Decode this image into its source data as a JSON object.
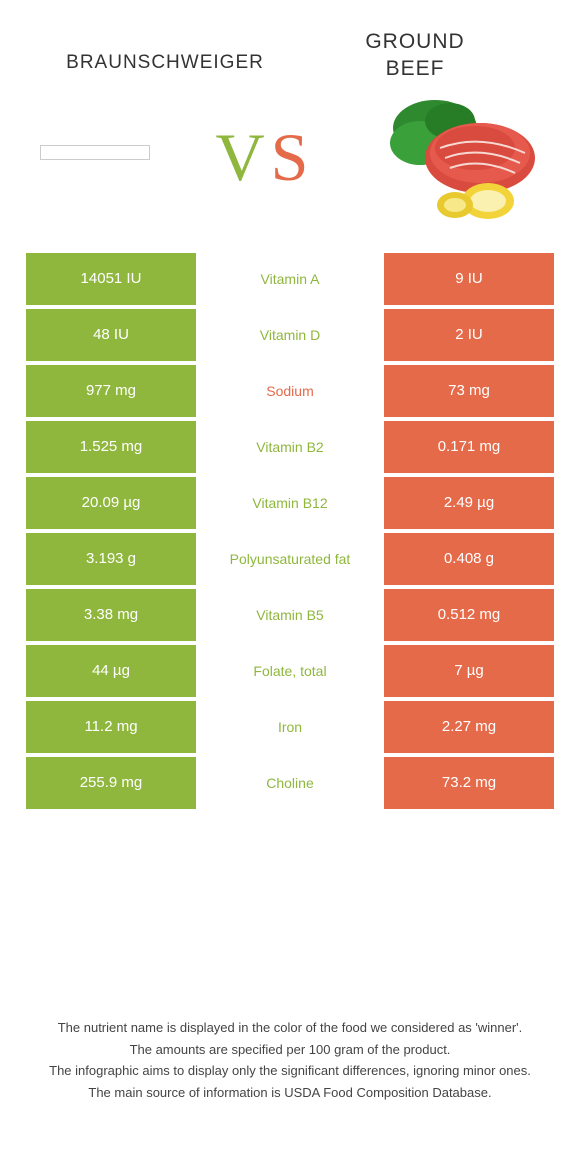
{
  "colors": {
    "left": "#8fb73e",
    "right": "#e46a4a",
    "midText": "#8fb73e"
  },
  "header": {
    "leftTitle": "BRAUNSCHWEIGER",
    "rightTitleLine1": "GROUND",
    "rightTitleLine2": "BEEF",
    "vs": "VS"
  },
  "rows": [
    {
      "left": "14051 IU",
      "mid": "Vitamin A",
      "right": "9 IU",
      "winner": "left"
    },
    {
      "left": "48 IU",
      "mid": "Vitamin D",
      "right": "2 IU",
      "winner": "left"
    },
    {
      "left": "977 mg",
      "mid": "Sodium",
      "right": "73 mg",
      "winner": "right"
    },
    {
      "left": "1.525 mg",
      "mid": "Vitamin B2",
      "right": "0.171 mg",
      "winner": "left"
    },
    {
      "left": "20.09 µg",
      "mid": "Vitamin B12",
      "right": "2.49 µg",
      "winner": "left"
    },
    {
      "left": "3.193 g",
      "mid": "Polyunsaturated fat",
      "right": "0.408 g",
      "winner": "left"
    },
    {
      "left": "3.38 mg",
      "mid": "Vitamin B5",
      "right": "0.512 mg",
      "winner": "left"
    },
    {
      "left": "44 µg",
      "mid": "Folate, total",
      "right": "7 µg",
      "winner": "left"
    },
    {
      "left": "11.2 mg",
      "mid": "Iron",
      "right": "2.27 mg",
      "winner": "left"
    },
    {
      "left": "255.9 mg",
      "mid": "Choline",
      "right": "73.2 mg",
      "winner": "left"
    }
  ],
  "footnotes": [
    "The nutrient name is displayed in the color of the food we considered as 'winner'.",
    "The amounts are specified per 100 gram of the product.",
    "The infographic aims to display only the significant differences, ignoring minor ones.",
    "The main source of information is USDA Food Composition Database."
  ]
}
